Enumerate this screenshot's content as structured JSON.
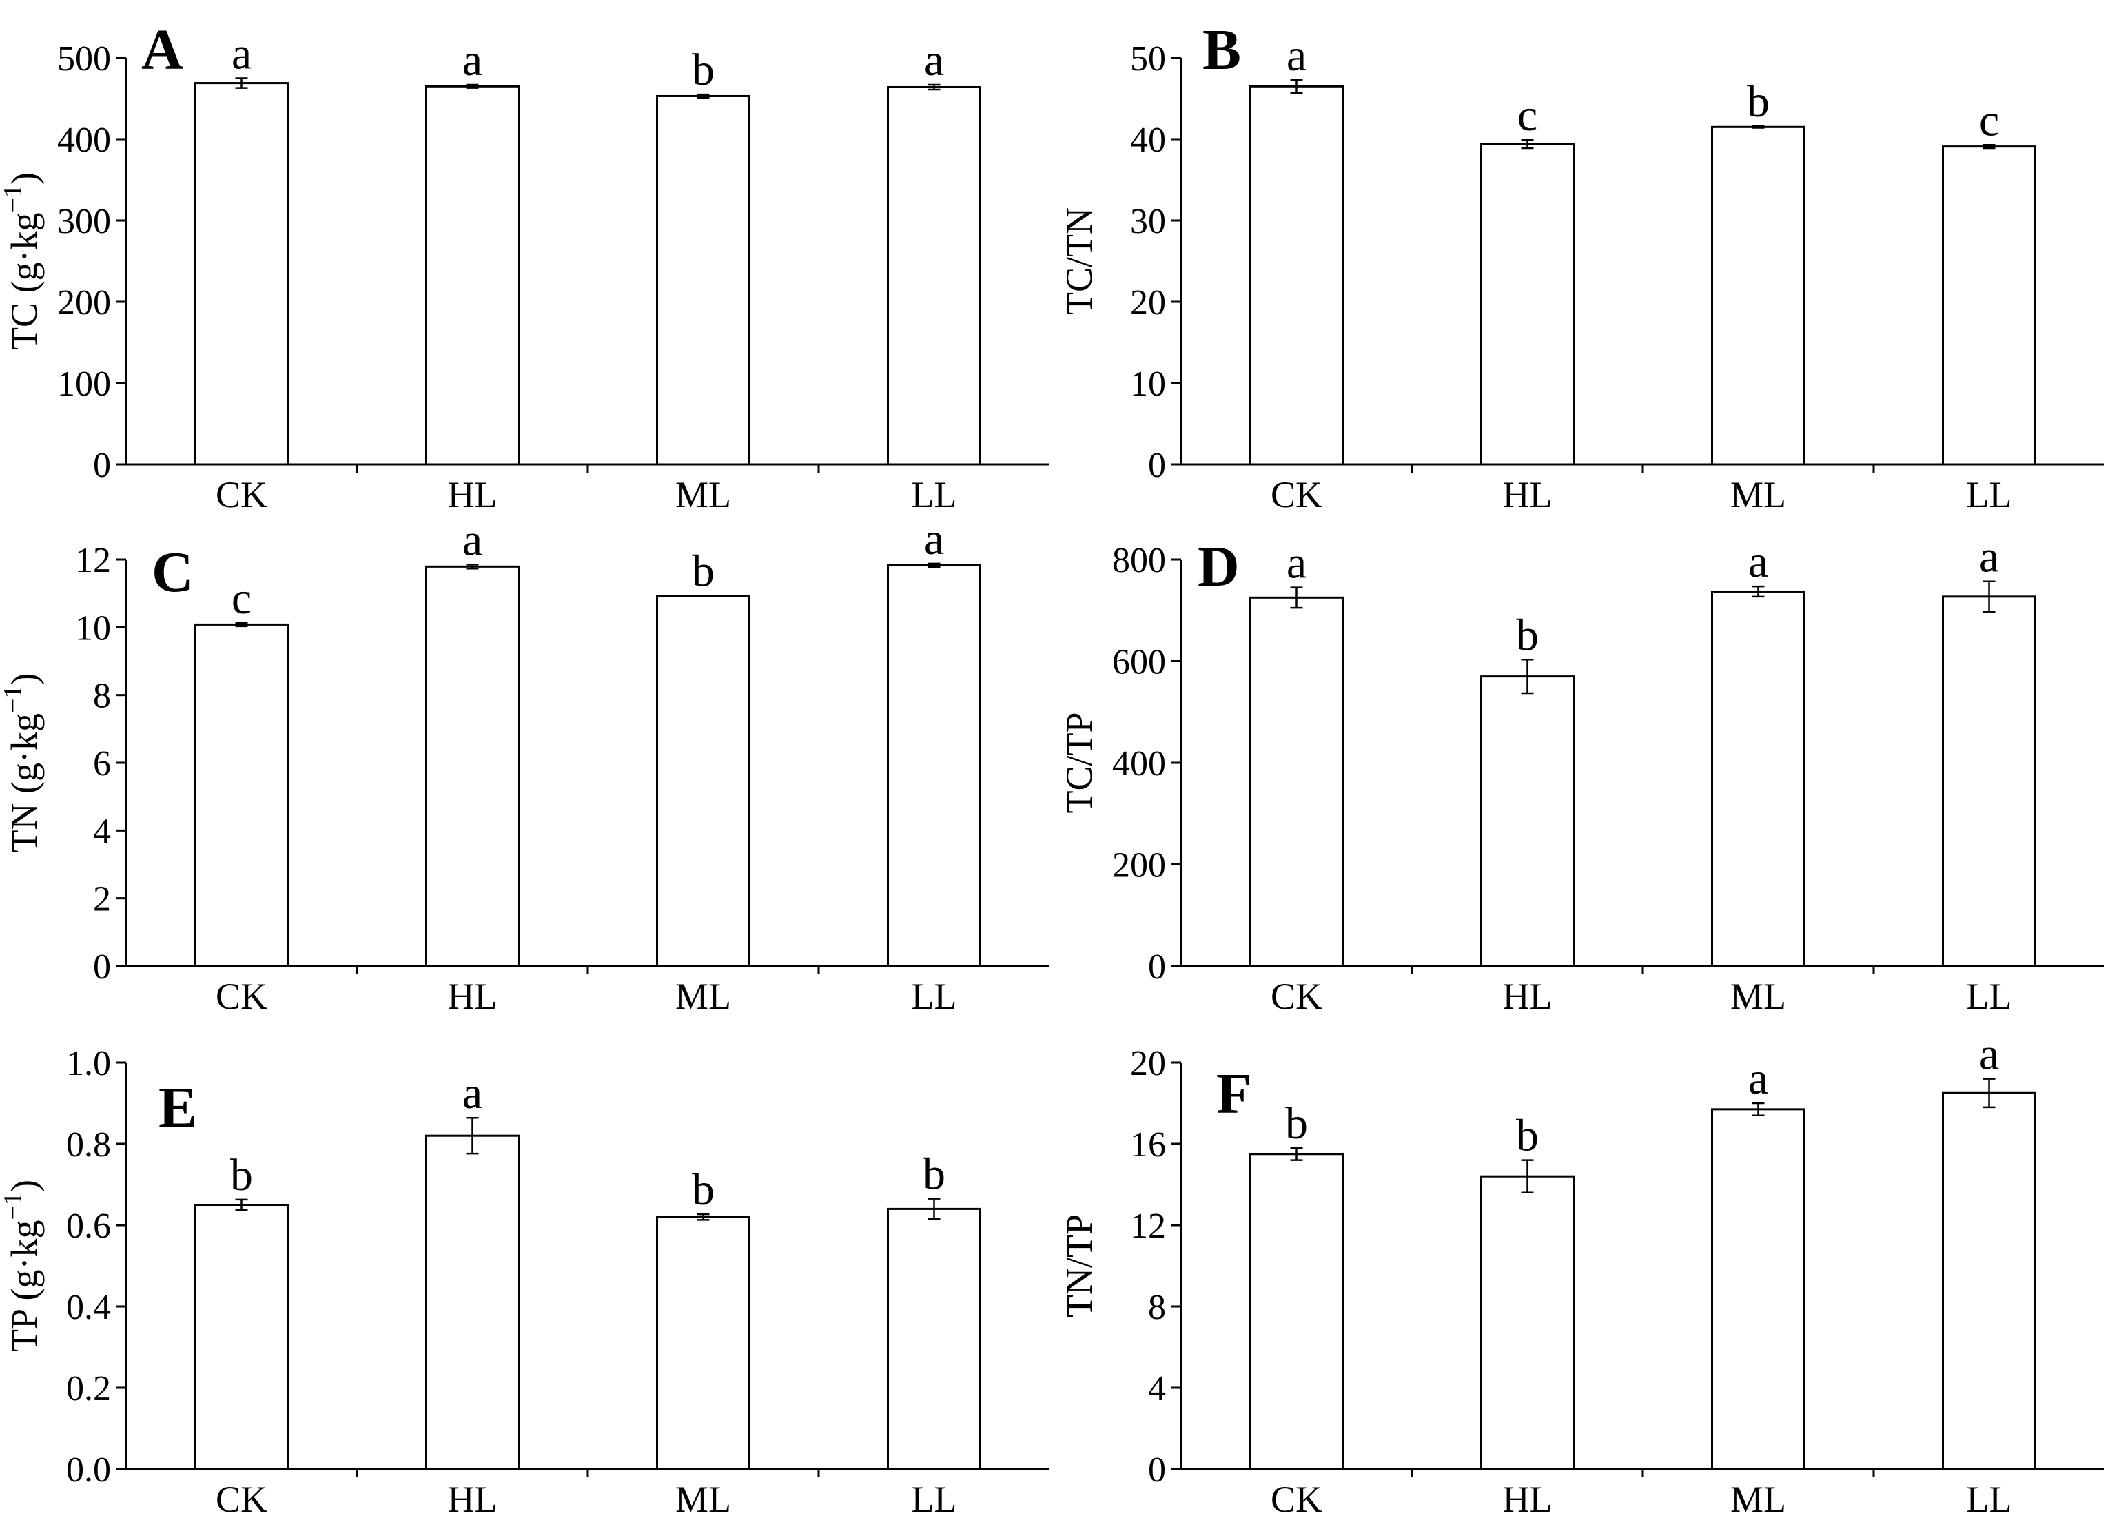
{
  "chart_data": [
    {
      "panel": "A",
      "type": "bar",
      "ylabel": "TC (g·kg",
      "ylabel_sup": "−1",
      "ylabel_suffix": ")",
      "categories": [
        "CK",
        "HL",
        "ML",
        "LL"
      ],
      "values": [
        469,
        465,
        453,
        464
      ],
      "errors": [
        6,
        2,
        2,
        3
      ],
      "significance": [
        "a",
        "a",
        "b",
        "a"
      ],
      "ylim": [
        0,
        500
      ],
      "yticks": [
        "0",
        "100",
        "200",
        "300",
        "400",
        "500"
      ],
      "ytick_values": [
        0,
        100,
        200,
        300,
        400,
        500
      ]
    },
    {
      "panel": "B",
      "type": "bar",
      "ylabel": "TC/TN",
      "ylabel_sup": "",
      "ylabel_suffix": "",
      "categories": [
        "CK",
        "HL",
        "ML",
        "LL"
      ],
      "values": [
        46.5,
        39.4,
        41.5,
        39.1
      ],
      "errors": [
        0.8,
        0.5,
        0.1,
        0.2
      ],
      "significance": [
        "a",
        "c",
        "b",
        "c"
      ],
      "ylim": [
        0,
        50
      ],
      "yticks": [
        "0",
        "10",
        "20",
        "30",
        "40",
        "50"
      ],
      "ytick_values": [
        0,
        10,
        20,
        30,
        40,
        50
      ]
    },
    {
      "panel": "C",
      "type": "bar",
      "ylabel": "TN (g·kg",
      "ylabel_sup": "−1",
      "ylabel_suffix": ")",
      "categories": [
        "CK",
        "HL",
        "ML",
        "LL"
      ],
      "values": [
        10.08,
        11.79,
        10.92,
        11.83
      ],
      "errors": [
        0.05,
        0.06,
        0.01,
        0.05
      ],
      "significance": [
        "c",
        "a",
        "b",
        "a"
      ],
      "ylim": [
        0,
        12
      ],
      "yticks": [
        "0",
        "2",
        "4",
        "6",
        "8",
        "10",
        "12"
      ],
      "ytick_values": [
        0,
        2,
        4,
        6,
        8,
        10,
        12
      ]
    },
    {
      "panel": "D",
      "type": "bar",
      "ylabel": "TC/TP",
      "ylabel_sup": "",
      "ylabel_suffix": "",
      "categories": [
        "CK",
        "HL",
        "ML",
        "LL"
      ],
      "values": [
        725,
        570,
        737,
        727
      ],
      "errors": [
        20,
        33,
        10,
        30
      ],
      "significance": [
        "a",
        "b",
        "a",
        "a"
      ],
      "ylim": [
        0,
        800
      ],
      "yticks": [
        "0",
        "200",
        "400",
        "600",
        "800"
      ],
      "ytick_values": [
        0,
        200,
        400,
        600,
        800
      ]
    },
    {
      "panel": "E",
      "type": "bar",
      "ylabel": "TP (g·kg",
      "ylabel_sup": "−1",
      "ylabel_suffix": ")",
      "categories": [
        "CK",
        "HL",
        "ML",
        "LL"
      ],
      "values": [
        0.65,
        0.82,
        0.62,
        0.64
      ],
      "errors": [
        0.013,
        0.044,
        0.007,
        0.025
      ],
      "significance": [
        "b",
        "a",
        "b",
        "b"
      ],
      "ylim": [
        0,
        1.0
      ],
      "yticks": [
        "0.0",
        "0.2",
        "0.4",
        "0.6",
        "0.8",
        "1.0"
      ],
      "ytick_values": [
        0,
        0.2,
        0.4,
        0.6,
        0.8,
        1.0
      ]
    },
    {
      "panel": "F",
      "type": "bar",
      "ylabel": "TN/TP",
      "ylabel_sup": "",
      "ylabel_suffix": "",
      "categories": [
        "CK",
        "HL",
        "ML",
        "LL"
      ],
      "values": [
        15.5,
        14.4,
        17.7,
        18.5
      ],
      "errors": [
        0.3,
        0.8,
        0.3,
        0.7
      ],
      "significance": [
        "b",
        "b",
        "a",
        "a"
      ],
      "ylim": [
        0,
        20
      ],
      "yticks": [
        "0",
        "4",
        "8",
        "12",
        "16",
        "20"
      ],
      "ytick_values": [
        0,
        4,
        8,
        12,
        16,
        20
      ]
    }
  ]
}
